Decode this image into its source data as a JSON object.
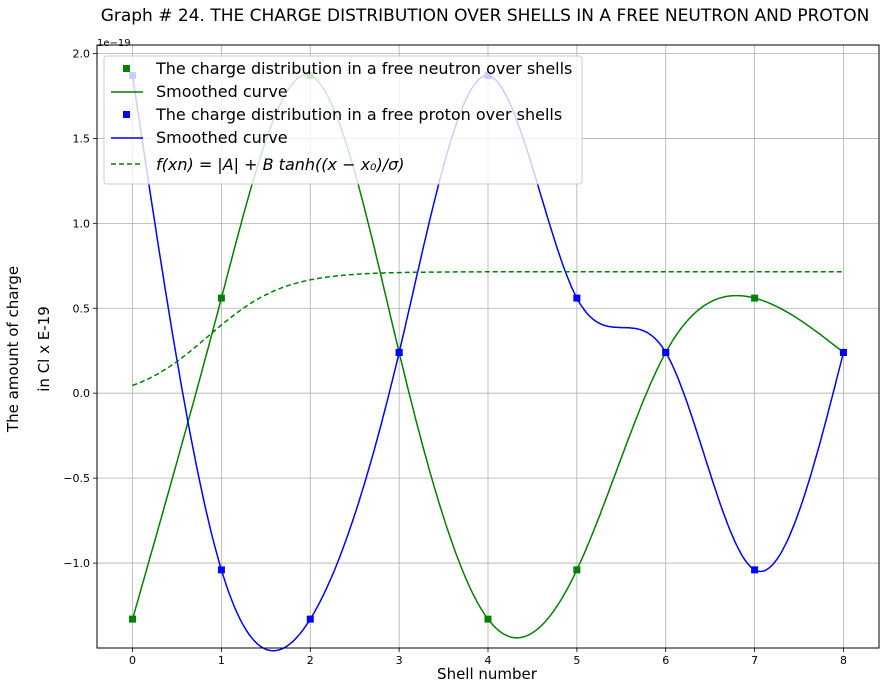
{
  "chart_data": {
    "type": "line",
    "title": "Graph # 24. THE CHARGE DISTRIBUTION OVER SHELLS IN A FREE NEUTRON AND PROTON",
    "xlabel": "Shell number",
    "ylabel_line1": "The amount of charge",
    "ylabel_line2": "in Cl x E-19",
    "offset_text": "1e−19",
    "xlim": [
      -0.4,
      8.4
    ],
    "ylim": [
      -1.5,
      2.05
    ],
    "xticks": [
      0,
      1,
      2,
      3,
      4,
      5,
      6,
      7,
      8
    ],
    "xtick_labels": [
      "0",
      "1",
      "2",
      "3",
      "4",
      "5",
      "6",
      "7",
      "8"
    ],
    "yticks": [
      -1.0,
      -0.5,
      0.0,
      0.5,
      1.0,
      1.5,
      2.0
    ],
    "ytick_labels": [
      "−1.0",
      "−0.5",
      "0.0",
      "0.5",
      "1.0",
      "1.5",
      "2.0"
    ],
    "grid": true,
    "legend_position": "top-left",
    "x": [
      0,
      1,
      2,
      3,
      4,
      5,
      6,
      7,
      8
    ],
    "series": [
      {
        "name": "The charge distribution in a free neutron over shells",
        "kind": "markers",
        "color": "#008000",
        "values": [
          -1.33,
          0.56,
          1.87,
          0.24,
          -1.33,
          -1.04,
          0.24,
          0.56,
          0.24
        ]
      },
      {
        "name": "Smoothed curve",
        "kind": "smooth",
        "color": "#008000",
        "values": [
          -1.33,
          0.56,
          1.87,
          0.24,
          -1.33,
          -1.04,
          0.24,
          0.56,
          0.24
        ]
      },
      {
        "name": "The charge distribution in a free proton over shells",
        "kind": "markers",
        "color": "#0000ff",
        "values": [
          1.87,
          -1.04,
          -1.33,
          0.24,
          1.87,
          0.56,
          0.24,
          -1.04,
          0.24
        ]
      },
      {
        "name": "Smoothed curve",
        "kind": "smooth",
        "color": "#0000ff",
        "values": [
          1.87,
          -1.04,
          -1.33,
          0.24,
          1.87,
          0.56,
          0.24,
          -1.04,
          0.24
        ]
      },
      {
        "name": "f(xn) = |A| + B tanh((x − x0)/σ)",
        "kind": "dashed",
        "color": "#008000",
        "A": 0.335,
        "B": 0.38,
        "x0": 0.85,
        "sigma": 0.85,
        "x_range": [
          0,
          8
        ]
      }
    ]
  }
}
